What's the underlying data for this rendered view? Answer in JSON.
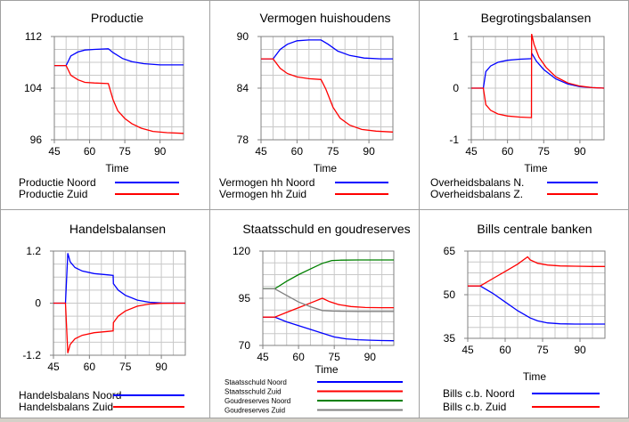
{
  "colors": {
    "blue": "#0000ff",
    "red": "#ff0000",
    "green": "#008000",
    "gray": "#808080",
    "grid": "#c8c8c8",
    "axis": "#808080"
  },
  "chart_data": [
    {
      "type": "line",
      "title": "Productie",
      "xlabel": "Time",
      "ylabel": "",
      "xlim": [
        45,
        100
      ],
      "ylim": [
        96,
        112
      ],
      "xticks": [
        45,
        60,
        75,
        90
      ],
      "yticks": [
        96,
        104,
        112
      ],
      "yticklabels": [
        "96",
        "104",
        "112"
      ],
      "series": [
        {
          "name": "Productie Noord",
          "color": "blue",
          "x": [
            45,
            50,
            52,
            55,
            58,
            62,
            68,
            70,
            74,
            78,
            83,
            90,
            100
          ],
          "y": [
            107.5,
            107.5,
            109,
            109.6,
            109.9,
            110,
            110.1,
            109.5,
            108.6,
            108.1,
            107.8,
            107.6,
            107.6
          ]
        },
        {
          "name": "Productie Zuid",
          "color": "red",
          "x": [
            45,
            50,
            52,
            55,
            58,
            62,
            68,
            70,
            72,
            75,
            78,
            82,
            87,
            93,
            100
          ],
          "y": [
            107.5,
            107.5,
            106,
            105.3,
            104.9,
            104.8,
            104.7,
            102.2,
            100.5,
            99.3,
            98.5,
            97.8,
            97.3,
            97.1,
            97
          ]
        }
      ]
    },
    {
      "type": "line",
      "title": "Vermogen huishoudens",
      "xlabel": "Time",
      "ylabel": "",
      "xlim": [
        45,
        100
      ],
      "ylim": [
        78,
        90
      ],
      "xticks": [
        45,
        60,
        75,
        90
      ],
      "yticks": [
        78,
        84,
        90
      ],
      "yticklabels": [
        "78",
        "84",
        "90"
      ],
      "series": [
        {
          "name": "Vermogen hh Noord",
          "color": "blue",
          "x": [
            45,
            50,
            53,
            56,
            60,
            65,
            70,
            73,
            77,
            82,
            88,
            95,
            100
          ],
          "y": [
            87.4,
            87.4,
            88.5,
            89.1,
            89.5,
            89.6,
            89.6,
            89.1,
            88.3,
            87.8,
            87.5,
            87.4,
            87.4
          ]
        },
        {
          "name": "Vermogen hh Zuid",
          "color": "red",
          "x": [
            45,
            50,
            53,
            56,
            60,
            65,
            70,
            72,
            75,
            78,
            82,
            87,
            93,
            100
          ],
          "y": [
            87.4,
            87.4,
            86.3,
            85.7,
            85.3,
            85.1,
            85.0,
            83.9,
            81.8,
            80.5,
            79.7,
            79.2,
            79.0,
            78.9
          ]
        }
      ]
    },
    {
      "type": "line",
      "title": "Begrotingsbalansen",
      "xlabel": "Time",
      "ylabel": "",
      "xlim": [
        45,
        100
      ],
      "ylim": [
        -1,
        1
      ],
      "xticks": [
        45,
        60,
        75,
        90
      ],
      "yticks": [
        -1,
        0,
        1
      ],
      "yticklabels": [
        "-1",
        "0",
        "1"
      ],
      "series": [
        {
          "name": "Overheidsbalans N.",
          "color": "blue",
          "x": [
            45,
            50,
            51,
            53,
            56,
            60,
            65,
            69.9,
            70,
            72,
            75,
            80,
            85,
            90,
            95,
            100
          ],
          "y": [
            0,
            0,
            0.32,
            0.43,
            0.5,
            0.54,
            0.56,
            0.57,
            0.68,
            0.52,
            0.36,
            0.18,
            0.08,
            0.03,
            0.01,
            0
          ]
        },
        {
          "name": "Overheidsbalans Z.",
          "color": "red",
          "x": [
            45,
            50,
            51,
            53,
            56,
            60,
            65,
            69.9,
            70,
            71,
            73,
            76,
            80,
            85,
            90,
            95,
            100
          ],
          "y": [
            0,
            0,
            -0.32,
            -0.43,
            -0.5,
            -0.54,
            -0.56,
            -0.57,
            1.05,
            0.85,
            0.6,
            0.4,
            0.22,
            0.1,
            0.04,
            0.01,
            0
          ]
        }
      ]
    },
    {
      "type": "line",
      "title": "Handelsbalansen",
      "xlabel": "",
      "ylabel": "",
      "xlim": [
        45,
        100
      ],
      "ylim": [
        -1.2,
        1.2
      ],
      "xticks": [
        45,
        60,
        75,
        90
      ],
      "yticks": [
        -1.2,
        0,
        1.2
      ],
      "yticklabels": [
        "-1.2",
        "0",
        "1.2"
      ],
      "series": [
        {
          "name": "Handelsbalans Noord",
          "color": "blue",
          "x": [
            45,
            50,
            51,
            52,
            54,
            57,
            62,
            68,
            69.9,
            70,
            72,
            75,
            80,
            85,
            90,
            100
          ],
          "y": [
            0,
            0,
            1.15,
            0.95,
            0.82,
            0.74,
            0.68,
            0.65,
            0.64,
            0.45,
            0.3,
            0.18,
            0.07,
            0.02,
            0.005,
            0
          ]
        },
        {
          "name": "Handelsbalans Zuid",
          "color": "red",
          "x": [
            45,
            50,
            51,
            52,
            54,
            57,
            62,
            68,
            69.9,
            70,
            72,
            75,
            80,
            85,
            90,
            100
          ],
          "y": [
            0,
            0,
            -1.15,
            -0.95,
            -0.82,
            -0.74,
            -0.68,
            -0.65,
            -0.64,
            -0.45,
            -0.3,
            -0.18,
            -0.07,
            -0.02,
            -0.005,
            0
          ]
        }
      ]
    },
    {
      "type": "line",
      "title": "Staatsschuld en goudreserves",
      "xlabel": "Time",
      "ylabel": "",
      "xlim": [
        45,
        100
      ],
      "ylim": [
        70,
        120
      ],
      "xticks": [
        45,
        60,
        75,
        90
      ],
      "yticks": [
        70,
        95,
        120
      ],
      "yticklabels": [
        "70",
        "95",
        "120"
      ],
      "series": [
        {
          "name": "Staatsschuld Noord",
          "color": "blue",
          "x": [
            45,
            50,
            55,
            60,
            65,
            70,
            75,
            80,
            85,
            90,
            95,
            100
          ],
          "y": [
            85,
            85,
            82.5,
            80.5,
            78.5,
            76.5,
            74.5,
            73.5,
            73,
            72.8,
            72.6,
            72.5
          ]
        },
        {
          "name": "Staatsschuld Zuid",
          "color": "red",
          "x": [
            45,
            50,
            55,
            60,
            65,
            70,
            73,
            77,
            82,
            88,
            95,
            100
          ],
          "y": [
            85,
            85,
            87.5,
            90,
            92.5,
            95,
            93.2,
            91.6,
            90.6,
            90.1,
            90,
            90
          ]
        },
        {
          "name": "Goudreserves Noord",
          "color": "green",
          "x": [
            45,
            50,
            55,
            60,
            65,
            70,
            74,
            78,
            85,
            92,
            100
          ],
          "y": [
            100,
            100,
            104,
            107.5,
            110.5,
            113.5,
            115,
            115.2,
            115.3,
            115.3,
            115.3
          ]
        },
        {
          "name": "Goudreserves Zuid",
          "color": "gray",
          "x": [
            45,
            50,
            55,
            60,
            65,
            70,
            74,
            78,
            85,
            92,
            100
          ],
          "y": [
            100,
            100,
            96.5,
            93,
            90.5,
            88.5,
            88.2,
            88.1,
            88,
            88,
            88
          ]
        }
      ]
    },
    {
      "type": "line",
      "title": "Bills centrale banken",
      "xlabel": "Time",
      "ylabel": "",
      "xlim": [
        45,
        100
      ],
      "ylim": [
        35,
        65
      ],
      "xticks": [
        45,
        60,
        75,
        90
      ],
      "yticks": [
        35,
        50,
        65
      ],
      "yticklabels": [
        "35",
        "50",
        "65"
      ],
      "series": [
        {
          "name": "Bills c.b. Noord",
          "color": "blue",
          "x": [
            45,
            50,
            55,
            60,
            65,
            70,
            73,
            77,
            82,
            88,
            95,
            100
          ],
          "y": [
            53,
            53,
            50.5,
            47.5,
            44.5,
            42,
            41,
            40.3,
            40,
            39.9,
            39.9,
            39.9
          ]
        },
        {
          "name": "Bills c.b. Zuid",
          "color": "red",
          "x": [
            45,
            50,
            55,
            60,
            65,
            69,
            70,
            73,
            77,
            82,
            88,
            95,
            100
          ],
          "y": [
            53,
            53,
            55.5,
            58,
            60.5,
            63,
            62,
            60.8,
            60.2,
            59.9,
            59.8,
            59.7,
            59.7
          ]
        }
      ]
    }
  ]
}
